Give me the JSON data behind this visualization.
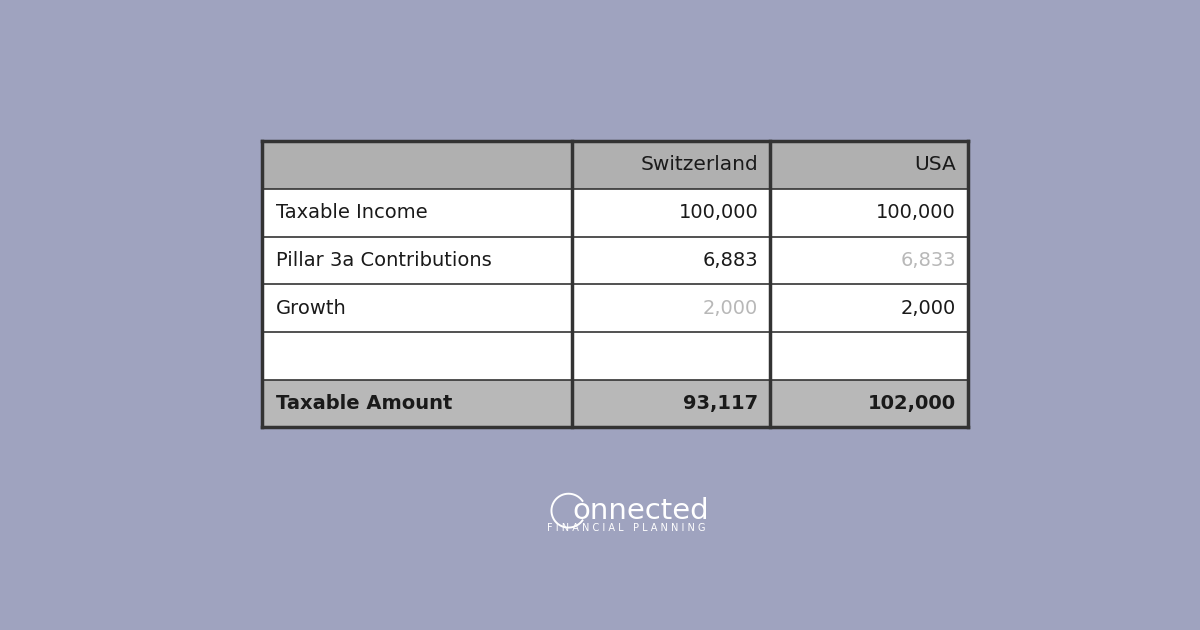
{
  "bg_color": "#9fa3bf",
  "table_bg": "#ffffff",
  "header_bg": "#b0b0b0",
  "footer_bg": "#b8b8b8",
  "border_color": "#333333",
  "header_row": [
    "",
    "Switzerland",
    "USA"
  ],
  "rows": [
    {
      "label": "Taxable Income",
      "ch": "100,000",
      "us": "100,000",
      "ch_dim": false,
      "us_dim": false
    },
    {
      "label": "Pillar 3a Contributions",
      "ch": "6,883",
      "us": "6,833",
      "ch_dim": false,
      "us_dim": true
    },
    {
      "label": "Growth",
      "ch": "2,000",
      "us": "2,000",
      "ch_dim": true,
      "us_dim": false
    },
    {
      "label": "",
      "ch": "",
      "us": "",
      "ch_dim": false,
      "us_dim": false
    }
  ],
  "footer_row": {
    "label": "Taxable Amount",
    "ch": "93,117",
    "us": "102,000"
  },
  "logo_text": "onnected",
  "logo_sub": "F I N A N C I A L   P L A N N I N G",
  "logo_color": "#ffffff",
  "dim_color": "#b8b8b8",
  "normal_color": "#1a1a1a",
  "header_text_color": "#1a1a1a"
}
